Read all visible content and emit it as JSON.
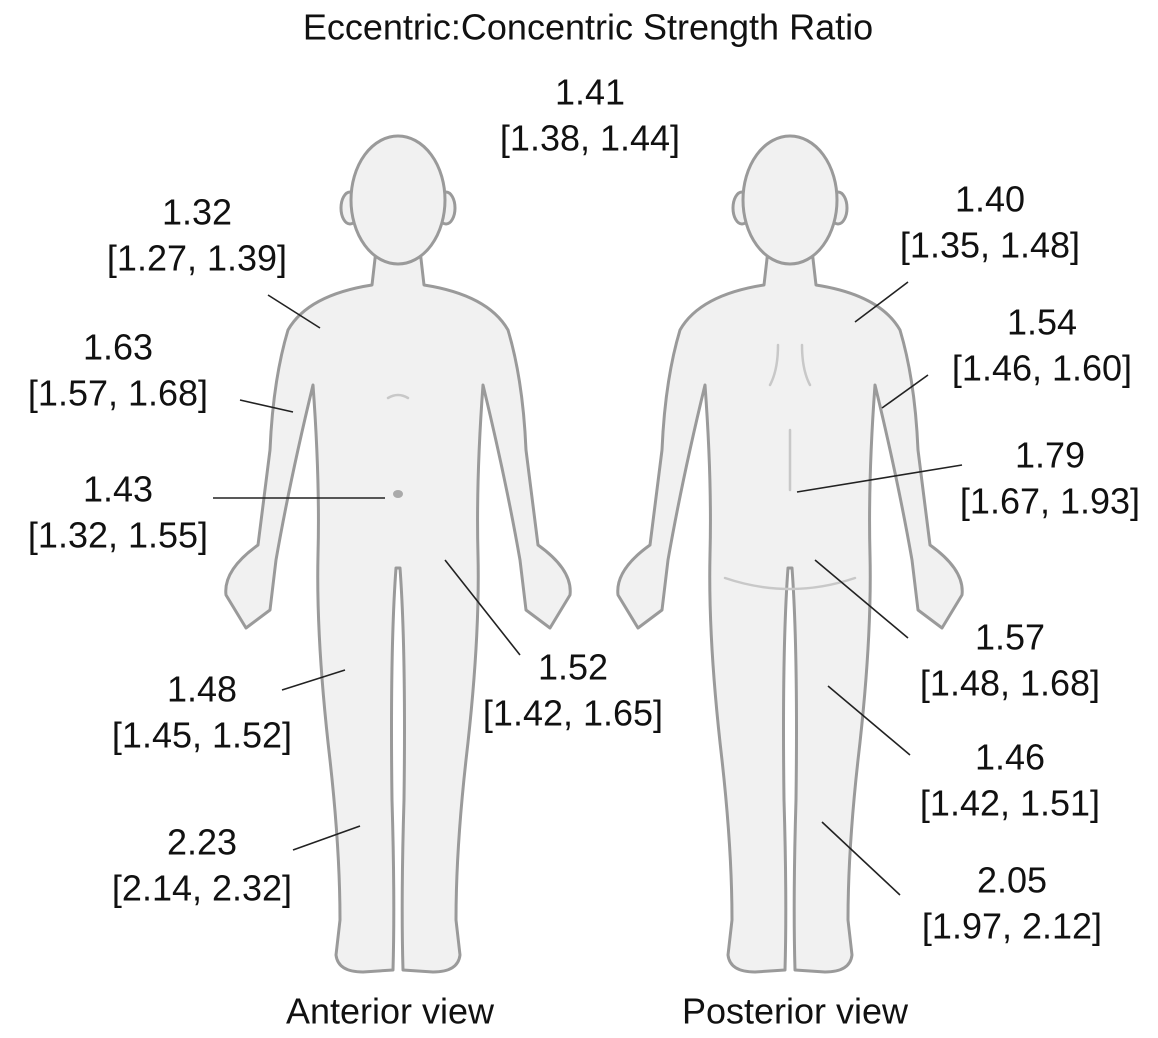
{
  "title": "Eccentric:Concentric Strength Ratio",
  "views": [
    {
      "label": "Anterior view"
    },
    {
      "label": "Posterior view"
    }
  ],
  "labels": [
    {
      "value": "1.41",
      "ci": "[1.38, 1.44]"
    },
    {
      "value": "1.32",
      "ci": "[1.27, 1.39]"
    },
    {
      "value": "1.63",
      "ci": "[1.57, 1.68]"
    },
    {
      "value": "1.43",
      "ci": "[1.32, 1.55]"
    },
    {
      "value": "1.48",
      "ci": "[1.45, 1.52]"
    },
    {
      "value": "2.23",
      "ci": "[2.14, 2.32]"
    },
    {
      "value": "1.52",
      "ci": "[1.42, 1.65]"
    },
    {
      "value": "1.40",
      "ci": "[1.35, 1.48]"
    },
    {
      "value": "1.54",
      "ci": "[1.46, 1.60]"
    },
    {
      "value": "1.79",
      "ci": "[1.67, 1.93]"
    },
    {
      "value": "1.57",
      "ci": "[1.48, 1.68]"
    },
    {
      "value": "1.46",
      "ci": "[1.42, 1.51]"
    },
    {
      "value": "2.05",
      "ci": "[1.97, 2.12]"
    }
  ]
}
